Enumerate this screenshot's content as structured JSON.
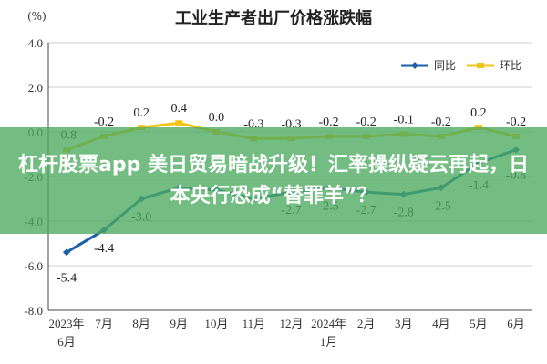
{
  "overlay_headline": "杠杆股票app 美日贸易暗战升级！汇率操纵疑云再起，日本央行恐成“替罪羊”？",
  "colors": {
    "yoy": "#1a5fa8",
    "mom": "#f0c419",
    "grid": "#cfcfcf",
    "axis": "#444444",
    "overlay": "#4baa5f"
  },
  "chart_data": {
    "type": "line",
    "title": "工业生产者出厂价格涨跌幅",
    "unit_label": "(%)",
    "categories": [
      "2023年 6月",
      "7月",
      "8月",
      "9月",
      "10月",
      "11月",
      "12月",
      "2024年 1月",
      "2月",
      "3月",
      "4月",
      "5月",
      "6月"
    ],
    "x_tick_lines": [
      [
        "2023年",
        "6月"
      ],
      [
        "7月"
      ],
      [
        "8月"
      ],
      [
        "9月"
      ],
      [
        "10月"
      ],
      [
        "11月"
      ],
      [
        "12月"
      ],
      [
        "2024年",
        "1月"
      ],
      [
        "2月"
      ],
      [
        "3月"
      ],
      [
        "4月"
      ],
      [
        "5月"
      ],
      [
        "6月"
      ]
    ],
    "ylim": [
      -8.0,
      4.0
    ],
    "y_ticks": [
      "4.0",
      "2.0",
      "0.0",
      "-2.0",
      "-4.0",
      "-6.0",
      "-8.0"
    ],
    "grid": true,
    "legend_position": "top-right",
    "series": [
      {
        "name": "同比",
        "color": "#1a5fa8",
        "values": [
          -5.4,
          -4.4,
          -3.0,
          -2.5,
          -2.6,
          -3.0,
          -2.7,
          -2.5,
          -2.7,
          -2.8,
          -2.5,
          -1.4,
          -0.8
        ],
        "labels": [
          "-5.4",
          "-4.4",
          "-3.0",
          "",
          "",
          "",
          "-2.7",
          "-2.5",
          "-2.7",
          "-2.8",
          "-2.5",
          "-1.4",
          "-0.8"
        ]
      },
      {
        "name": "环比",
        "color": "#f0c419",
        "values": [
          -0.8,
          -0.2,
          0.2,
          0.4,
          0.0,
          -0.3,
          -0.3,
          -0.2,
          -0.2,
          -0.1,
          -0.2,
          0.2,
          -0.2
        ],
        "labels": [
          "-0.8",
          "-0.2",
          "0.2",
          "0.4",
          "0.0",
          "-0.3",
          "-0.3",
          "-0.2",
          "-0.2",
          "-0.1",
          "-0.2",
          "0.2",
          "-0.2"
        ]
      }
    ]
  }
}
